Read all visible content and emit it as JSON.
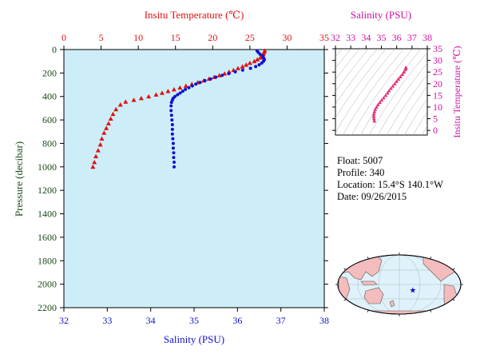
{
  "colors": {
    "temperature": "#e01010",
    "salinity": "#1010d0",
    "inset_accent": "#d010a0",
    "inset_points": "#e8307a",
    "plot_bg": "#cdeef8",
    "axis_left": "#1a4a1a",
    "float_marker": "#1010d0"
  },
  "chart_data": [
    {
      "type": "scatter",
      "title": "",
      "top_axis_label": "Insitu Temperature (℃)",
      "bottom_axis_label": "Salinity (PSU)",
      "ylabel": "Pressure (decibar)",
      "temperature_lim": [
        0,
        35
      ],
      "salinity_lim": [
        32,
        38
      ],
      "pressure_lim": [
        0,
        2200
      ],
      "y_inverted": true,
      "temperature_ticks": [
        "0",
        "5",
        "10",
        "15",
        "20",
        "25",
        "30",
        "35"
      ],
      "salinity_ticks": [
        "32",
        "33",
        "34",
        "35",
        "36",
        "37",
        "38"
      ],
      "pressure_ticks": [
        "0",
        "200",
        "400",
        "600",
        "800",
        "1000",
        "1200",
        "1400",
        "1600",
        "1800",
        "2000",
        "2200"
      ],
      "series": [
        {
          "marker": "triangle",
          "color_key": "temperature",
          "axis": "temperature",
          "points": [
            [
              27.0,
              10
            ],
            [
              26.9,
              25
            ],
            [
              26.8,
              40
            ],
            [
              26.6,
              55
            ],
            [
              26.4,
              70
            ],
            [
              26.0,
              85
            ],
            [
              25.6,
              100
            ],
            [
              25.0,
              115
            ],
            [
              24.5,
              130
            ],
            [
              24.0,
              145
            ],
            [
              23.4,
              160
            ],
            [
              22.8,
              175
            ],
            [
              22.2,
              190
            ],
            [
              21.6,
              205
            ],
            [
              20.9,
              220
            ],
            [
              20.2,
              235
            ],
            [
              19.5,
              250
            ],
            [
              18.8,
              265
            ],
            [
              18.0,
              280
            ],
            [
              17.2,
              295
            ],
            [
              16.4,
              310
            ],
            [
              15.6,
              325
            ],
            [
              14.8,
              340
            ],
            [
              14.0,
              355
            ],
            [
              13.2,
              370
            ],
            [
              12.4,
              385
            ],
            [
              11.4,
              400
            ],
            [
              10.4,
              415
            ],
            [
              9.4,
              430
            ],
            [
              8.3,
              445
            ],
            [
              7.6,
              470
            ],
            [
              7.0,
              510
            ],
            [
              6.6,
              550
            ],
            [
              6.3,
              590
            ],
            [
              6.0,
              630
            ],
            [
              5.7,
              670
            ],
            [
              5.4,
              710
            ],
            [
              5.1,
              760
            ],
            [
              4.9,
              810
            ],
            [
              4.6,
              860
            ],
            [
              4.3,
              910
            ],
            [
              4.1,
              960
            ],
            [
              3.9,
              1000
            ]
          ]
        },
        {
          "marker": "dot",
          "color_key": "salinity",
          "axis": "salinity",
          "points": [
            [
              36.45,
              10
            ],
            [
              36.48,
              25
            ],
            [
              36.52,
              40
            ],
            [
              36.58,
              55
            ],
            [
              36.6,
              70
            ],
            [
              36.62,
              85
            ],
            [
              36.6,
              100
            ],
            [
              36.56,
              115
            ],
            [
              36.5,
              130
            ],
            [
              36.42,
              145
            ],
            [
              36.3,
              160
            ],
            [
              36.12,
              175
            ],
            [
              35.95,
              190
            ],
            [
              35.8,
              205
            ],
            [
              35.65,
              220
            ],
            [
              35.5,
              235
            ],
            [
              35.38,
              250
            ],
            [
              35.25,
              265
            ],
            [
              35.14,
              280
            ],
            [
              35.04,
              295
            ],
            [
              34.96,
              310
            ],
            [
              34.88,
              325
            ],
            [
              34.8,
              340
            ],
            [
              34.74,
              355
            ],
            [
              34.68,
              370
            ],
            [
              34.62,
              385
            ],
            [
              34.56,
              400
            ],
            [
              34.52,
              415
            ],
            [
              34.5,
              430
            ],
            [
              34.48,
              450
            ],
            [
              34.47,
              480
            ],
            [
              34.47,
              520
            ],
            [
              34.48,
              560
            ],
            [
              34.49,
              600
            ],
            [
              34.5,
              640
            ],
            [
              34.5,
              680
            ],
            [
              34.5,
              720
            ],
            [
              34.51,
              760
            ],
            [
              34.52,
              800
            ],
            [
              34.52,
              840
            ],
            [
              34.53,
              880
            ],
            [
              34.53,
              920
            ],
            [
              34.54,
              960
            ],
            [
              34.54,
              1000
            ]
          ]
        }
      ]
    },
    {
      "type": "scatter",
      "title": "",
      "top_axis_label": "Salinity (PSU)",
      "ylabel": "Insitu Temperature (℃)",
      "xlim": [
        32,
        38
      ],
      "ylim": [
        -2,
        35
      ],
      "x_ticks": [
        "32",
        "33",
        "34",
        "35",
        "36",
        "37",
        "38"
      ],
      "y_ticks": [
        "0",
        "5",
        "10",
        "15",
        "20",
        "25",
        "30",
        "35"
      ],
      "points": [
        [
          34.54,
          4
        ],
        [
          34.52,
          5
        ],
        [
          34.5,
          6
        ],
        [
          34.51,
          7
        ],
        [
          34.55,
          8
        ],
        [
          34.6,
          9
        ],
        [
          34.68,
          10
        ],
        [
          34.78,
          11
        ],
        [
          34.9,
          12
        ],
        [
          35.02,
          13
        ],
        [
          35.15,
          14
        ],
        [
          35.28,
          15
        ],
        [
          35.4,
          16
        ],
        [
          35.5,
          17
        ],
        [
          35.62,
          18
        ],
        [
          35.75,
          19
        ],
        [
          35.88,
          20
        ],
        [
          36.0,
          21
        ],
        [
          36.12,
          22
        ],
        [
          36.25,
          23
        ],
        [
          36.38,
          24
        ],
        [
          36.48,
          25
        ],
        [
          36.55,
          26
        ],
        [
          36.6,
          26.5
        ],
        [
          36.6,
          27
        ]
      ]
    }
  ],
  "float_info": {
    "float_line": "Float:  5007",
    "profile_line": "Profile:  340",
    "location_line": "Location:  15.4°S  140.1°W",
    "date_line": "Date:  09/26/2015"
  },
  "map": {
    "float_lat": -15.4,
    "float_lon": -140.1
  }
}
